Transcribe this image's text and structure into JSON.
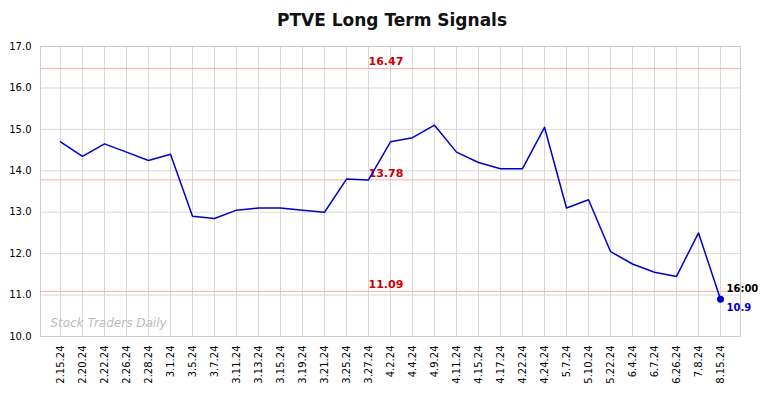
{
  "chart_data": {
    "type": "line",
    "title": "PTVE Long Term Signals",
    "categories": [
      "2.15.24",
      "2.20.24",
      "2.22.24",
      "2.26.24",
      "2.28.24",
      "3.1.24",
      "3.5.24",
      "3.7.24",
      "3.11.24",
      "3.13.24",
      "3.15.24",
      "3.19.24",
      "3.21.24",
      "3.25.24",
      "3.27.24",
      "4.2.24",
      "4.4.24",
      "4.9.24",
      "4.11.24",
      "4.15.24",
      "4.17.24",
      "4.22.24",
      "4.24.24",
      "5.7.24",
      "5.10.24",
      "5.22.24",
      "6.4.24",
      "6.7.24",
      "6.26.24",
      "7.8.24",
      "8.15.24"
    ],
    "values": [
      14.7,
      14.35,
      14.65,
      14.45,
      14.25,
      14.4,
      12.9,
      12.85,
      13.05,
      13.1,
      13.1,
      13.05,
      13.0,
      13.8,
      13.78,
      14.7,
      14.8,
      15.1,
      14.45,
      14.2,
      14.05,
      14.05,
      15.05,
      13.1,
      13.3,
      12.05,
      11.75,
      11.55,
      11.45,
      12.5,
      10.9
    ],
    "color": "#0000cc",
    "ylim": [
      10,
      17
    ],
    "yticks": [
      10,
      11,
      12,
      13,
      14,
      15,
      16,
      17
    ],
    "grid": true,
    "reference_lines": [
      {
        "value": 16.47,
        "label": "16.47",
        "color": "#ffaaaa",
        "label_color": "#cc0000",
        "label_at": "3.27.24"
      },
      {
        "value": 13.78,
        "label": "13.78",
        "color": "#ffaaaa",
        "label_color": "#cc0000",
        "label_at": "3.27.24"
      },
      {
        "value": 11.09,
        "label": "11.09",
        "color": "#ffaaaa",
        "label_color": "#cc0000",
        "label_at": "3.27.24"
      }
    ],
    "annotations": {
      "last_point": "16:00",
      "watermark": "Stock Traders Daily"
    }
  }
}
